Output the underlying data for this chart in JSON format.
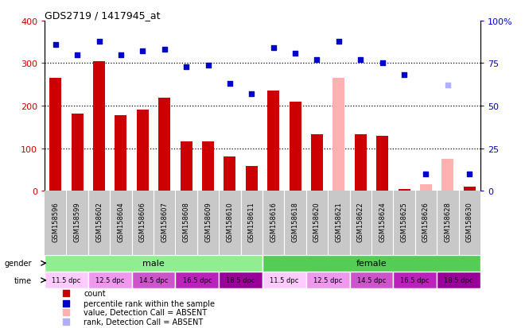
{
  "title": "GDS2719 / 1417945_at",
  "samples": [
    "GSM158596",
    "GSM158599",
    "GSM158602",
    "GSM158604",
    "GSM158606",
    "GSM158607",
    "GSM158608",
    "GSM158609",
    "GSM158610",
    "GSM158611",
    "GSM158616",
    "GSM158618",
    "GSM158620",
    "GSM158621",
    "GSM158622",
    "GSM158624",
    "GSM158625",
    "GSM158626",
    "GSM158628",
    "GSM158630"
  ],
  "bar_values": [
    265,
    182,
    305,
    178,
    190,
    218,
    116,
    116,
    80,
    58,
    235,
    210,
    133,
    265,
    133,
    130,
    5,
    15,
    75,
    10
  ],
  "bar_absent": [
    false,
    false,
    false,
    false,
    false,
    false,
    false,
    false,
    false,
    false,
    false,
    false,
    false,
    true,
    false,
    false,
    false,
    true,
    true,
    false
  ],
  "rank_values": [
    86,
    80,
    88,
    80,
    82,
    83,
    73,
    74,
    63,
    57,
    84,
    81,
    77,
    88,
    77,
    75,
    68,
    10,
    62,
    10
  ],
  "rank_absent": [
    false,
    false,
    false,
    false,
    false,
    false,
    false,
    false,
    false,
    false,
    false,
    false,
    false,
    false,
    false,
    false,
    false,
    false,
    true,
    false
  ],
  "bar_color_normal": "#cc0000",
  "bar_color_absent": "#ffb0b0",
  "rank_color_normal": "#0000cc",
  "rank_color_absent": "#b0b0ff",
  "ylim_left": [
    0,
    400
  ],
  "ylim_right": [
    0,
    100
  ],
  "yticks_left": [
    0,
    100,
    200,
    300,
    400
  ],
  "yticks_right": [
    0,
    25,
    50,
    75,
    100
  ],
  "ytick_labels_right": [
    "0",
    "25",
    "50",
    "75",
    "100%"
  ],
  "gender_male_color": "#90ee90",
  "gender_female_color": "#55cc55",
  "time_colors": [
    "#ffccff",
    "#ee99ee",
    "#cc55cc",
    "#bb22bb",
    "#990099",
    "#ffccff",
    "#ee99ee",
    "#cc55cc",
    "#bb22bb",
    "#990099"
  ],
  "time_labels": [
    "11.5 dpc",
    "12.5 dpc",
    "14.5 dpc",
    "16.5 dpc",
    "18.5 dpc",
    "11.5 dpc",
    "12.5 dpc",
    "14.5 dpc",
    "16.5 dpc",
    "18.5 dpc"
  ],
  "time_ranges_samples": [
    [
      0,
      1
    ],
    [
      2,
      3
    ],
    [
      4,
      5
    ],
    [
      6,
      7
    ],
    [
      8,
      9
    ],
    [
      10,
      11
    ],
    [
      12,
      13
    ],
    [
      14,
      15
    ],
    [
      16,
      17
    ],
    [
      18,
      19
    ]
  ],
  "bar_color_normal_legend": "#cc0000",
  "rank_color_normal_legend": "#0000cc",
  "bar_color_absent_legend": "#ffb0b0",
  "rank_color_absent_legend": "#b0b0ff",
  "tick_bg_color": "#c8c8c8",
  "bar_width": 0.55
}
